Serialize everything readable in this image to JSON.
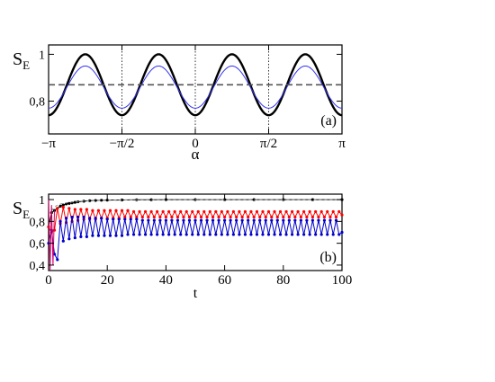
{
  "chart_data": [
    {
      "panel_label": "(a)",
      "type": "line",
      "ylabel_main": "S",
      "ylabel_sub": "E",
      "xlabel": "α",
      "xlim": [
        -3.1416,
        3.1416
      ],
      "ylim": [
        0.66,
        1.04
      ],
      "yticks": [
        {
          "value": 1.0,
          "label": "1"
        },
        {
          "value": 0.8,
          "label": "0,8"
        }
      ],
      "xticks": [
        {
          "value": -3.1416,
          "label": "−π"
        },
        {
          "value": -1.5708,
          "label": "−π/2"
        },
        {
          "value": 0,
          "label": "0"
        },
        {
          "value": 1.5708,
          "label": "π/2"
        },
        {
          "value": 3.1416,
          "label": "π"
        }
      ],
      "vlines": [
        -1.5708,
        0,
        1.5708
      ],
      "series": [
        {
          "style": "black-thick",
          "color": "#000000",
          "form": "cos",
          "mean": 0.87,
          "amplitude": 0.13,
          "frequency": 4
        },
        {
          "style": "blue-thin",
          "color": "#3333ee",
          "form": "cos",
          "mean": 0.86,
          "amplitude": 0.09,
          "frequency": 4
        },
        {
          "style": "dashed",
          "color": "#555555",
          "form": "const",
          "value": 0.87
        }
      ]
    },
    {
      "panel_label": "(b)",
      "type": "line",
      "ylabel_main": "S",
      "ylabel_sub": "E",
      "xlabel": "t",
      "xlim": [
        0,
        100
      ],
      "ylim": [
        0.35,
        1.05
      ],
      "yticks": [
        {
          "value": 1.0,
          "label": "1"
        },
        {
          "value": 0.8,
          "label": "0,8"
        },
        {
          "value": 0.6,
          "label": "0,6"
        },
        {
          "value": 0.4,
          "label": "0,4"
        }
      ],
      "xticks": [
        {
          "value": 0,
          "label": "0"
        },
        {
          "value": 20,
          "label": "20"
        },
        {
          "value": 40,
          "label": "40"
        },
        {
          "value": 60,
          "label": "60"
        },
        {
          "value": 80,
          "label": "80"
        },
        {
          "value": 100,
          "label": "100"
        }
      ],
      "series": [
        {
          "style": "black-markers",
          "color": "#000000",
          "x": [
            0,
            1,
            2,
            3,
            4,
            5,
            6,
            7,
            8,
            9,
            10,
            12,
            14,
            16,
            18,
            20,
            25,
            30,
            35,
            40,
            50,
            60,
            70,
            80,
            90,
            100
          ],
          "y": [
            0.75,
            0.88,
            0.9,
            0.92,
            0.94,
            0.95,
            0.96,
            0.965,
            0.97,
            0.975,
            0.98,
            0.985,
            0.99,
            0.992,
            0.994,
            0.995,
            0.997,
            0.998,
            0.999,
            1.0,
            1.0,
            1.0,
            1.0,
            1.0,
            1.0,
            1.0
          ]
        },
        {
          "style": "dashed-envelope",
          "color": "#888888",
          "x": [
            1,
            2,
            3,
            4,
            6,
            8,
            10,
            14,
            18,
            22,
            28,
            35,
            45,
            60,
            80,
            100
          ],
          "y": [
            0.9,
            0.93,
            0.95,
            0.96,
            0.97,
            0.978,
            0.983,
            0.989,
            0.993,
            0.995,
            0.997,
            0.998,
            0.999,
            1.0,
            1.0,
            1.0
          ]
        },
        {
          "style": "red-markers",
          "color": "#ff0000",
          "x": [
            0,
            1,
            2,
            3,
            4,
            5,
            6,
            7,
            8,
            9,
            10,
            11,
            12,
            13,
            14,
            15,
            16,
            17,
            18,
            19,
            20,
            21,
            22,
            23,
            24,
            25,
            26,
            27,
            28,
            29,
            30,
            31,
            32,
            33,
            34,
            35,
            36,
            37,
            38,
            39,
            40,
            41,
            42,
            43,
            44,
            45,
            46,
            47,
            48,
            49,
            50,
            51,
            52,
            53,
            54,
            55,
            56,
            57,
            58,
            59,
            60,
            61,
            62,
            63,
            64,
            65,
            66,
            67,
            68,
            69,
            70,
            71,
            72,
            73,
            74,
            75,
            76,
            77,
            78,
            79,
            80,
            81,
            82,
            83,
            84,
            85,
            86,
            87,
            88,
            89,
            90,
            91,
            92,
            93,
            94,
            95,
            96,
            97,
            98,
            99,
            100
          ],
          "y": [
            0.75,
            0.7,
            0.72,
            0.92,
            0.78,
            0.93,
            0.79,
            0.92,
            0.8,
            0.91,
            0.81,
            0.91,
            0.82,
            0.91,
            0.82,
            0.9,
            0.82,
            0.9,
            0.83,
            0.9,
            0.83,
            0.9,
            0.83,
            0.9,
            0.83,
            0.9,
            0.84,
            0.9,
            0.84,
            0.89,
            0.84,
            0.89,
            0.84,
            0.89,
            0.84,
            0.89,
            0.84,
            0.89,
            0.84,
            0.89,
            0.84,
            0.89,
            0.84,
            0.89,
            0.84,
            0.89,
            0.84,
            0.89,
            0.84,
            0.89,
            0.84,
            0.89,
            0.84,
            0.89,
            0.84,
            0.89,
            0.84,
            0.89,
            0.84,
            0.89,
            0.84,
            0.89,
            0.84,
            0.89,
            0.84,
            0.89,
            0.84,
            0.89,
            0.84,
            0.89,
            0.84,
            0.89,
            0.84,
            0.89,
            0.84,
            0.89,
            0.84,
            0.89,
            0.84,
            0.89,
            0.84,
            0.89,
            0.84,
            0.89,
            0.84,
            0.89,
            0.84,
            0.89,
            0.84,
            0.89,
            0.84,
            0.89,
            0.84,
            0.89,
            0.84,
            0.89,
            0.84,
            0.89,
            0.84,
            0.89,
            0.86
          ]
        },
        {
          "style": "blue-markers",
          "color": "#0000cc",
          "x": [
            0,
            1,
            2,
            3,
            4,
            5,
            6,
            7,
            8,
            9,
            10,
            11,
            12,
            13,
            14,
            15,
            16,
            17,
            18,
            19,
            20,
            21,
            22,
            23,
            24,
            25,
            26,
            27,
            28,
            29,
            30,
            31,
            32,
            33,
            34,
            35,
            36,
            37,
            38,
            39,
            40,
            41,
            42,
            43,
            44,
            45,
            46,
            47,
            48,
            49,
            50,
            51,
            52,
            53,
            54,
            55,
            56,
            57,
            58,
            59,
            60,
            61,
            62,
            63,
            64,
            65,
            66,
            67,
            68,
            69,
            70,
            71,
            72,
            73,
            74,
            75,
            76,
            77,
            78,
            79,
            80,
            81,
            82,
            83,
            84,
            85,
            86,
            87,
            88,
            89,
            90,
            91,
            92,
            93,
            94,
            95,
            96,
            97,
            98,
            99,
            100
          ],
          "y": [
            0.6,
            0.72,
            0.5,
            0.45,
            0.8,
            0.62,
            0.83,
            0.64,
            0.84,
            0.65,
            0.84,
            0.66,
            0.84,
            0.66,
            0.83,
            0.67,
            0.83,
            0.67,
            0.83,
            0.67,
            0.82,
            0.67,
            0.82,
            0.67,
            0.82,
            0.67,
            0.82,
            0.68,
            0.82,
            0.68,
            0.82,
            0.68,
            0.81,
            0.68,
            0.81,
            0.68,
            0.81,
            0.68,
            0.81,
            0.68,
            0.81,
            0.68,
            0.81,
            0.68,
            0.81,
            0.68,
            0.81,
            0.68,
            0.81,
            0.68,
            0.81,
            0.68,
            0.81,
            0.68,
            0.81,
            0.68,
            0.81,
            0.68,
            0.81,
            0.68,
            0.81,
            0.68,
            0.81,
            0.68,
            0.81,
            0.68,
            0.81,
            0.68,
            0.81,
            0.68,
            0.81,
            0.68,
            0.81,
            0.68,
            0.81,
            0.68,
            0.81,
            0.68,
            0.81,
            0.68,
            0.81,
            0.68,
            0.81,
            0.68,
            0.81,
            0.68,
            0.81,
            0.68,
            0.81,
            0.68,
            0.81,
            0.68,
            0.81,
            0.68,
            0.81,
            0.68,
            0.81,
            0.68,
            0.81,
            0.68,
            0.7
          ]
        },
        {
          "style": "magenta-spike",
          "color": "#cc0066",
          "x": [
            0,
            0.5,
            1,
            1.5,
            2
          ],
          "y": [
            1.0,
            0.35,
            0.95,
            0.4,
            0.9
          ]
        }
      ]
    }
  ]
}
